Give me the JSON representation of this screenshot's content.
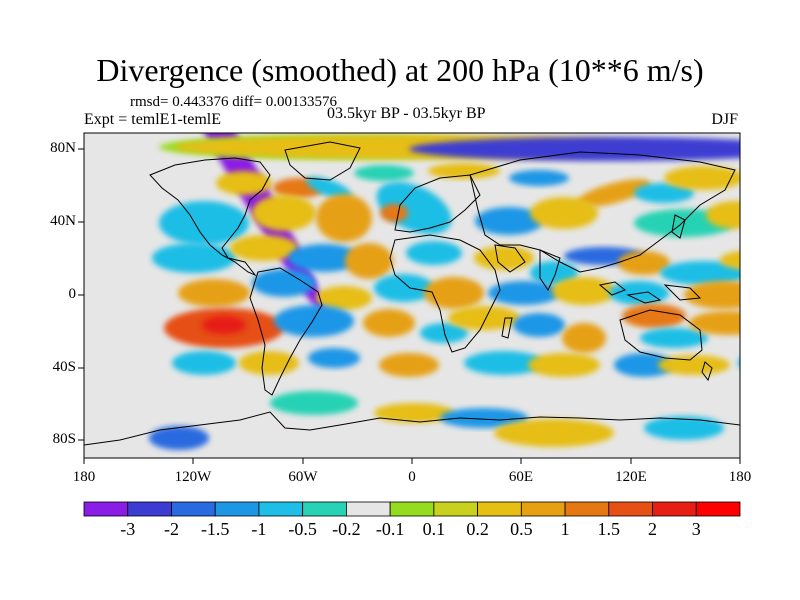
{
  "title": "Divergence (smoothed) at 200 hPa (10**6 m/s)",
  "stats": "rmsd= 0.443376 diff= 0.00133576",
  "expt": "Expt = temlE1-temlE",
  "period": "03.5kyr BP - 03.5kyr BP",
  "season": "DJF",
  "y_ticks": [
    "80N",
    "40N",
    "0",
    "40S",
    "80S"
  ],
  "x_ticks": [
    "180",
    "120W",
    "60W",
    "0",
    "60E",
    "120E",
    "180"
  ],
  "colorbar": {
    "labels": [
      "-3",
      "-2",
      "-1.5",
      "-1",
      "-0.5",
      "-0.2",
      "-0.1",
      "0.1",
      "0.2",
      "0.5",
      "1",
      "1.5",
      "2",
      "3"
    ],
    "colors": [
      "#8a1ee6",
      "#3c3cd2",
      "#2a6ae0",
      "#1e96e6",
      "#1ebee6",
      "#28d2b4",
      "#e6e6e6",
      "#96dc1e",
      "#c8d21e",
      "#e6be14",
      "#e6a014",
      "#e67814",
      "#e65014",
      "#e61e14",
      "#ff0000"
    ]
  }
}
